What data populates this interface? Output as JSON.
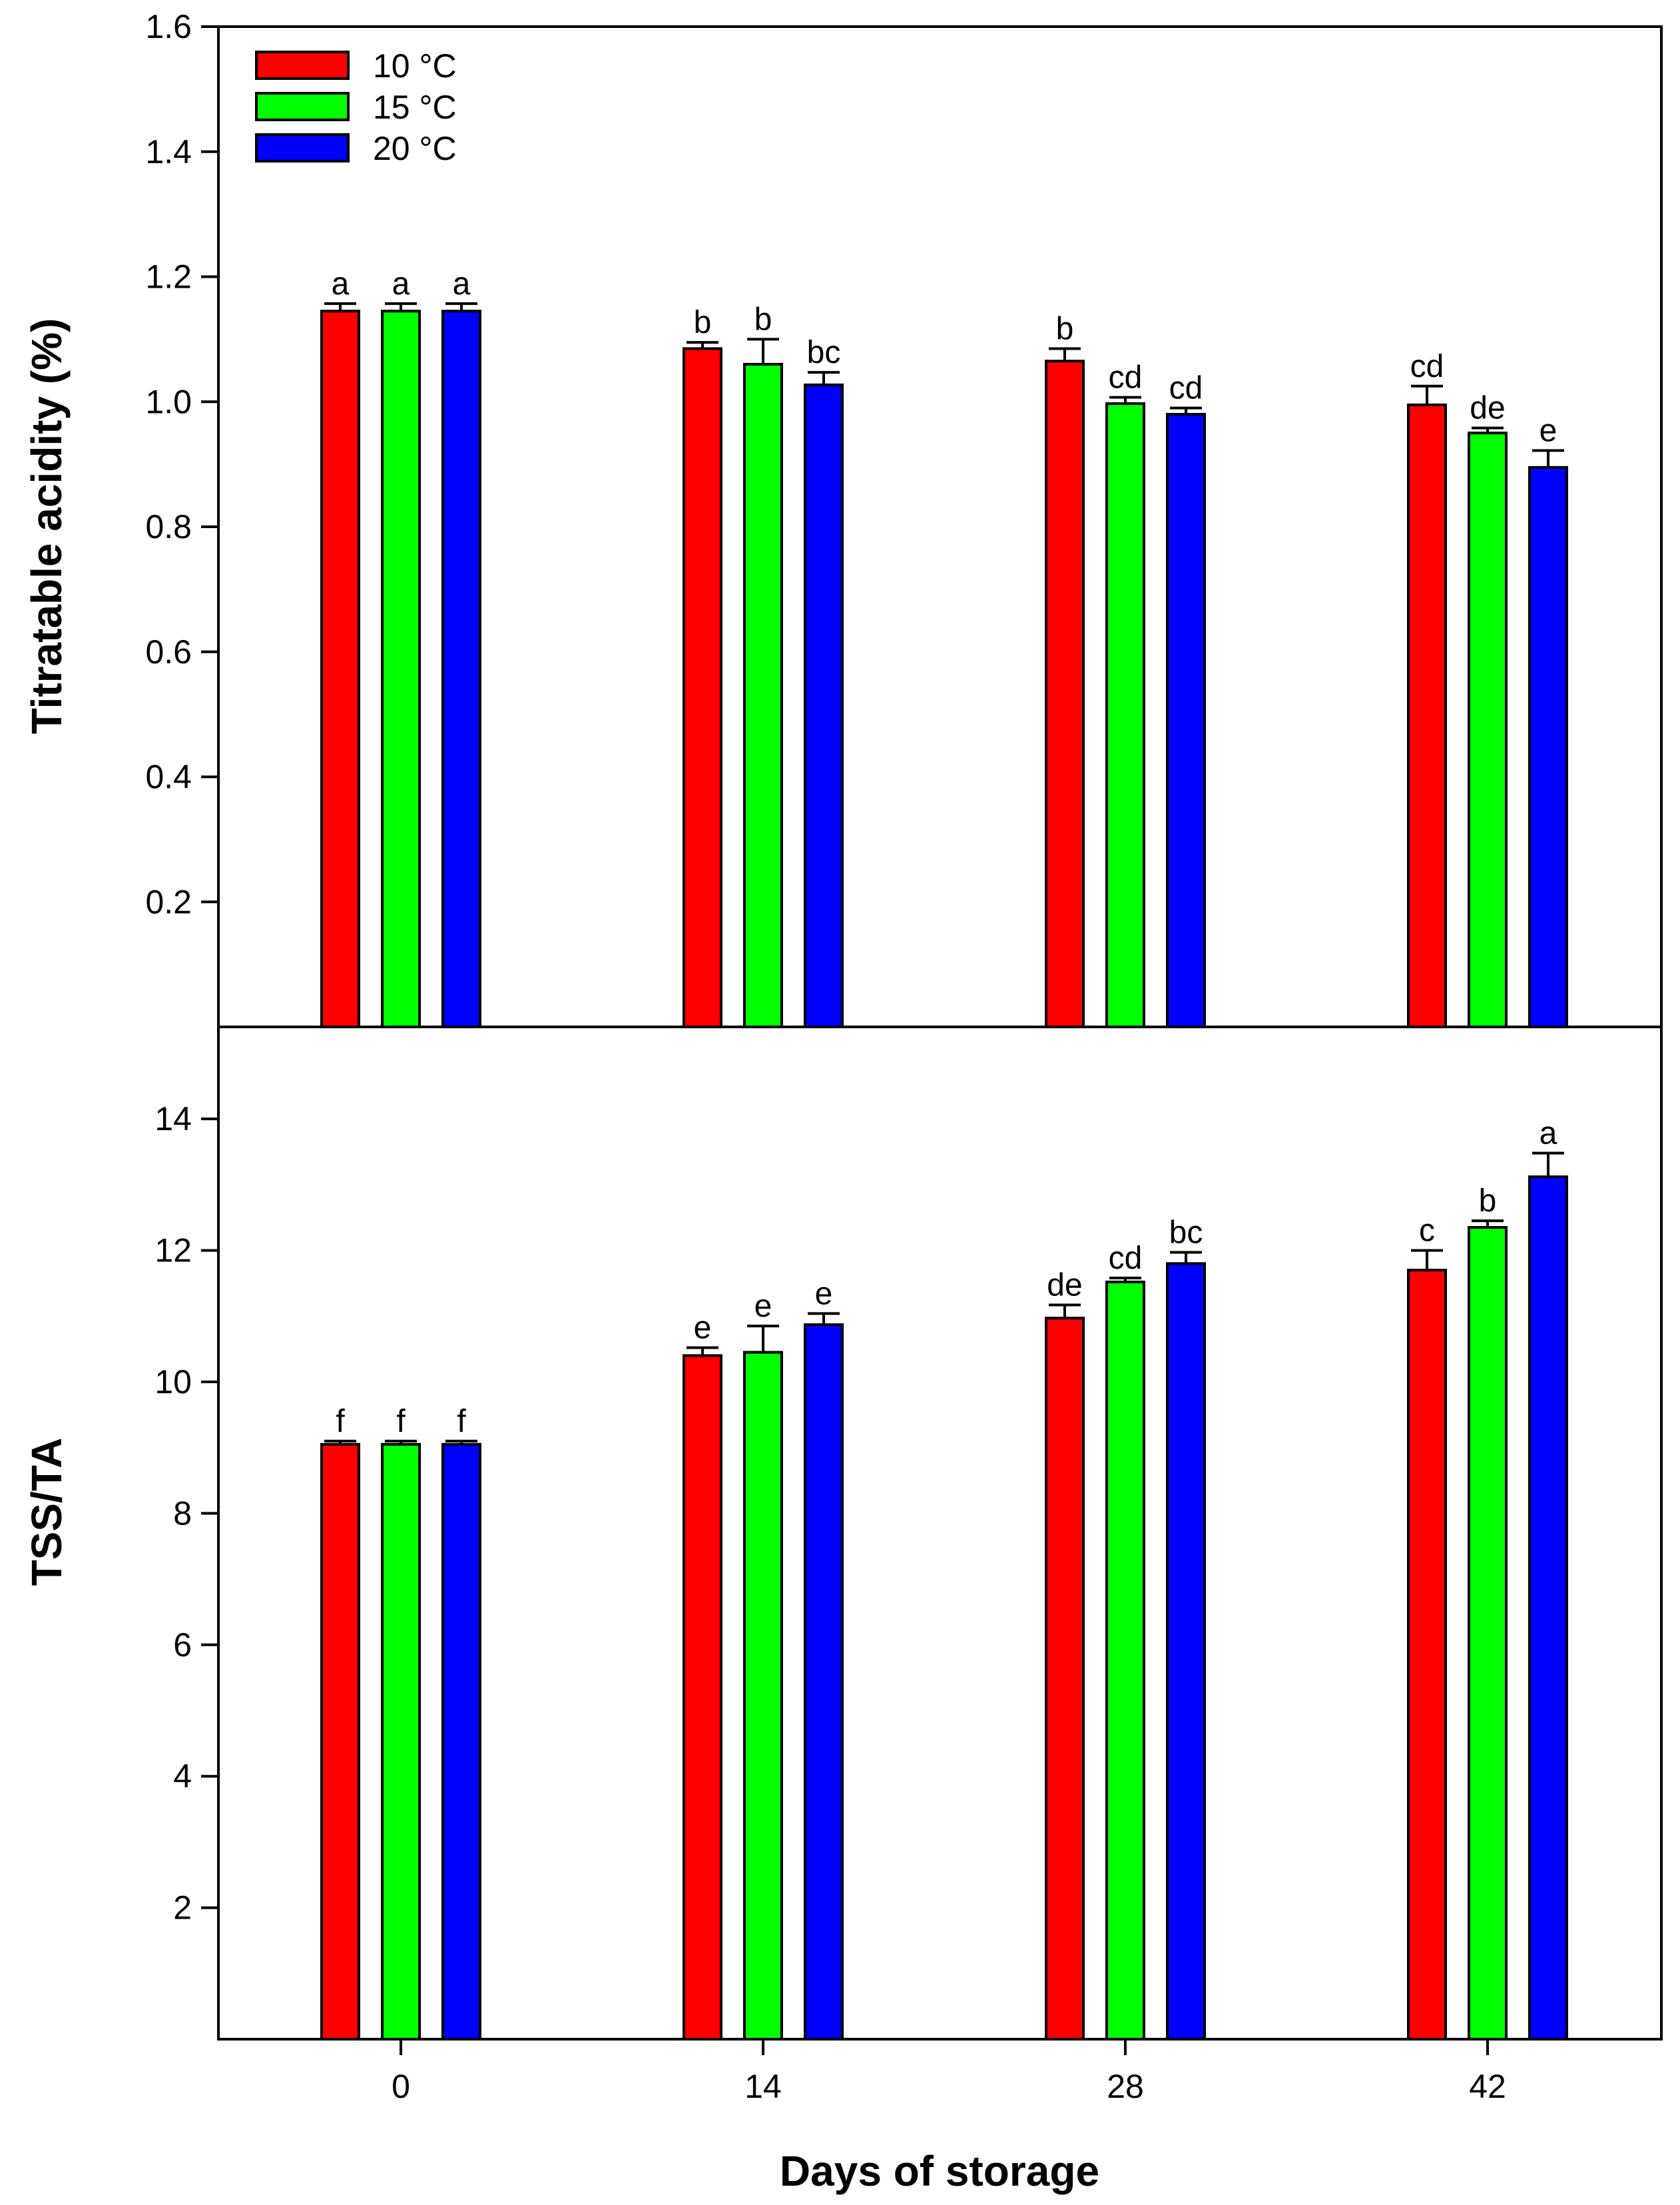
{
  "chart_data": [
    {
      "type": "bar",
      "id": "ta",
      "ylabel": "Titratable acidity (%)",
      "xlabel": "",
      "categories": [
        "0",
        "14",
        "28",
        "42"
      ],
      "ylim": [
        0,
        1.6
      ],
      "yticks": [
        "0.2",
        "0.4",
        "0.6",
        "0.8",
        "1.0",
        "1.2",
        "1.4",
        "1.6"
      ],
      "series": [
        {
          "name": "10 °C",
          "color": "#ff0000",
          "values": [
            1.145,
            1.085,
            1.065,
            0.995
          ],
          "errors": [
            0.012,
            0.01,
            0.02,
            0.03
          ],
          "letters": [
            "a",
            "b",
            "b",
            "cd"
          ]
        },
        {
          "name": "15 °C",
          "color": "#00ff00",
          "values": [
            1.145,
            1.06,
            0.997,
            0.95
          ],
          "errors": [
            0.012,
            0.04,
            0.01,
            0.008
          ],
          "letters": [
            "a",
            "b",
            "cd",
            "de"
          ]
        },
        {
          "name": "20 °C",
          "color": "#0000ff",
          "values": [
            1.145,
            1.027,
            0.98,
            0.895
          ],
          "errors": [
            0.012,
            0.02,
            0.01,
            0.027
          ],
          "letters": [
            "a",
            "bc",
            "cd",
            "e"
          ]
        }
      ]
    },
    {
      "type": "bar",
      "id": "tssta",
      "ylabel": "TSS/TA",
      "xlabel": "Days of storage",
      "categories": [
        "0",
        "14",
        "28",
        "42"
      ],
      "ylim": [
        0,
        15.4
      ],
      "yticks": [
        "2",
        "4",
        "6",
        "8",
        "10",
        "12",
        "14"
      ],
      "series": [
        {
          "name": "10 °C",
          "color": "#ff0000",
          "values": [
            9.05,
            10.4,
            10.97,
            11.7
          ],
          "errors": [
            0.05,
            0.12,
            0.2,
            0.3
          ],
          "letters": [
            "f",
            "e",
            "de",
            "c"
          ]
        },
        {
          "name": "15 °C",
          "color": "#00ff00",
          "values": [
            9.05,
            10.45,
            11.52,
            12.35
          ],
          "errors": [
            0.05,
            0.4,
            0.06,
            0.1
          ],
          "letters": [
            "f",
            "e",
            "cd",
            "b"
          ]
        },
        {
          "name": "20 °C",
          "color": "#0000ff",
          "values": [
            9.05,
            10.87,
            11.8,
            13.12
          ],
          "errors": [
            0.05,
            0.17,
            0.17,
            0.36
          ],
          "letters": [
            "f",
            "e",
            "bc",
            "a"
          ]
        }
      ]
    }
  ],
  "legend": [
    {
      "label": "10 °C",
      "color": "#ff0000"
    },
    {
      "label": "15 °C",
      "color": "#00ff00"
    },
    {
      "label": "20 °C",
      "color": "#0000ff"
    }
  ]
}
